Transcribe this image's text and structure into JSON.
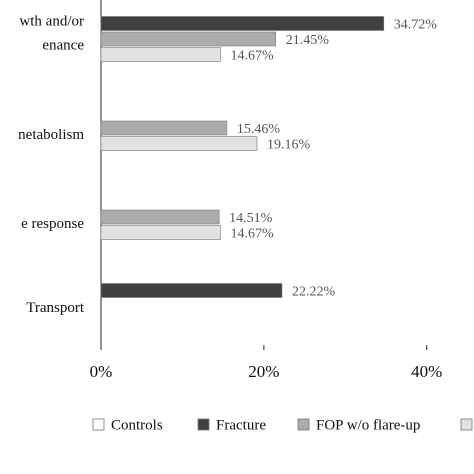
{
  "chart_data": {
    "type": "hbar",
    "categories": [
      [
        "wth and/or",
        "enance"
      ],
      [
        "netabolism"
      ],
      [
        "e response"
      ],
      [
        "Transport"
      ]
    ],
    "series": [
      {
        "name": "Controls",
        "color": "#ffffff",
        "values": [
          null,
          null,
          null,
          null
        ]
      },
      {
        "name": "Fracture",
        "color": "#404040",
        "values": [
          34.72,
          null,
          null,
          22.22
        ],
        "value_labels": [
          "34.72%",
          null,
          null,
          "22.22%"
        ]
      },
      {
        "name": "FOP w/o flare-up",
        "color": "#acacac",
        "values": [
          21.45,
          15.46,
          14.51,
          null
        ],
        "value_labels": [
          "21.45%",
          "15.46%",
          "14.51%",
          null
        ]
      },
      {
        "color": "#e2e2e2",
        "values": [
          14.67,
          19.16,
          14.67,
          null
        ],
        "value_labels": [
          "14.67%",
          "19.16%",
          "14.67%",
          null
        ]
      }
    ],
    "xlim": [
      0,
      45.8
    ],
    "xticks": [
      {
        "value": 0,
        "label": "0%"
      },
      {
        "value": 20,
        "label": "20%"
      },
      {
        "value": 40,
        "label": "40%"
      }
    ]
  }
}
